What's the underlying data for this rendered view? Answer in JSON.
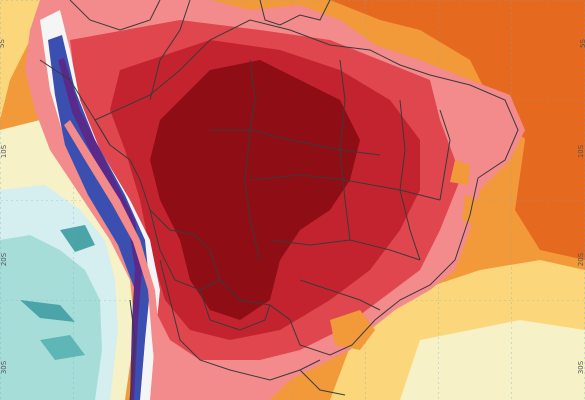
{
  "map": {
    "latitude_labels": [
      "5S",
      "10S",
      "20S",
      "30S"
    ],
    "colors": {
      "ocean_cool": "#a7ddd9",
      "ocean_light": "#d5eef0",
      "ocean_cream": "#f6f1c6",
      "ocean_yellow": "#fbd67a",
      "ocean_orange": "#f29a3a",
      "ocean_deep_orange": "#e56a1f",
      "land_pink": "#f38a8c",
      "land_red": "#e0464e",
      "land_darkred": "#c3232e",
      "land_maroon": "#8f0d15",
      "andes_blue": "#3a4fb0",
      "andes_purple": "#5a2a8a",
      "andes_white": "#f5f5f5",
      "border": "#3a3a3a"
    }
  }
}
